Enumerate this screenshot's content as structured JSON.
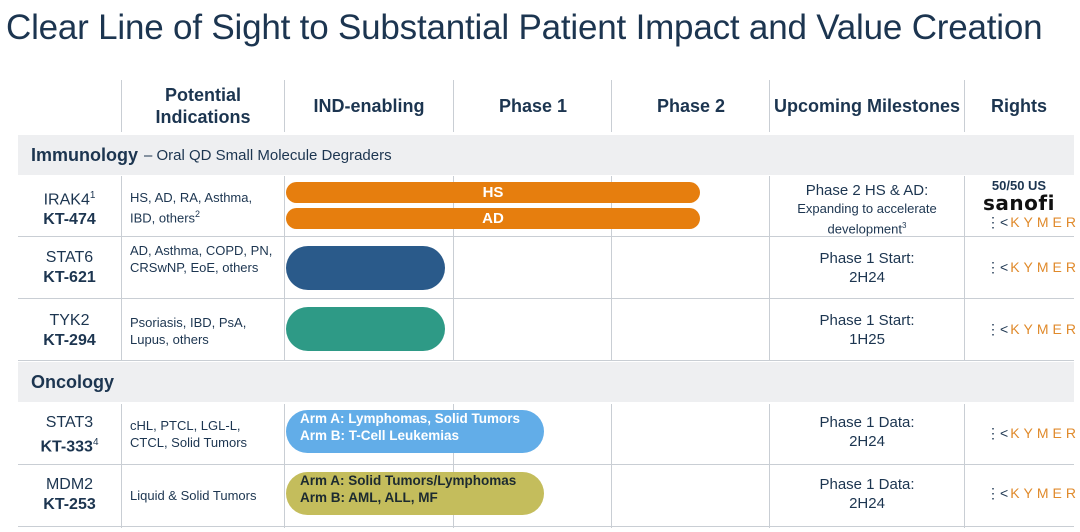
{
  "title": "Clear Line of Sight to Substantial Patient Impact and Value Creation",
  "headers": {
    "indications": "Potential Indications",
    "ind_enabling": "IND-enabling",
    "phase1": "Phase 1",
    "phase2": "Phase 2",
    "milestones": "Upcoming Milestones",
    "rights": "Rights"
  },
  "sections": {
    "immunology": {
      "name": "Immunology",
      "sub": "– Oral QD Small Molecule Degraders"
    },
    "oncology": {
      "name": "Oncology"
    }
  },
  "rows": [
    {
      "gene": "IRAK4",
      "gene_sup": "1",
      "code": "KT-474",
      "code_sup": "",
      "indications": "HS, AD, RA, Asthma, IBD, others",
      "ind_sup": "2",
      "bars": [
        {
          "label": "HS",
          "color": "#e67e0e",
          "stage": "phase2-end"
        },
        {
          "label": "AD",
          "color": "#e67e0e",
          "stage": "phase2-end"
        }
      ],
      "milestone_line1": "Phase 2 HS & AD:",
      "milestone_line2": "Expanding to accelerate development",
      "milestone_sup": "3",
      "rights_split": "50/50 US",
      "rights_partner": "sanofi",
      "rights_company": "KYMERA"
    },
    {
      "gene": "STAT6",
      "code": "KT-621",
      "indications": "AD, Asthma, COPD, PN, CRSwNP, EoE, others",
      "bar_color": "#2a5a8a",
      "milestone_line1": "Phase 1 Start:",
      "milestone_line2": "2H24",
      "rights_company": "KYMERA"
    },
    {
      "gene": "TYK2",
      "code": "KT-294",
      "indications": "Psoriasis, IBD, PsA, Lupus, others",
      "bar_color": "#2e9a86",
      "milestone_line1": "Phase 1 Start:",
      "milestone_line2": "1H25",
      "rights_company": "KYMERA"
    },
    {
      "gene": "STAT3",
      "code": "KT-333",
      "code_sup": "4",
      "indications": "cHL, PTCL, LGL-L, CTCL, Solid Tumors",
      "bar_color": "#62ade8",
      "bar_line1": "Arm A: Lymphomas, Solid Tumors",
      "bar_line2": "Arm B: T-Cell Leukemias",
      "milestone_line1": "Phase 1 Data:",
      "milestone_line2": "2H24",
      "rights_company": "KYMERA"
    },
    {
      "gene": "MDM2",
      "code": "KT-253",
      "indications": "Liquid & Solid Tumors",
      "bar_color": "#c4bd5c",
      "bar_line1": "Arm A: Solid Tumors/Lymphomas",
      "bar_line2": "Arm B: AML, ALL, MF",
      "milestone_line1": "Phase 1 Data:",
      "milestone_line2": "2H24",
      "rights_company": "KYMERA"
    }
  ],
  "kymera_bar_glyph": "⋮<"
}
